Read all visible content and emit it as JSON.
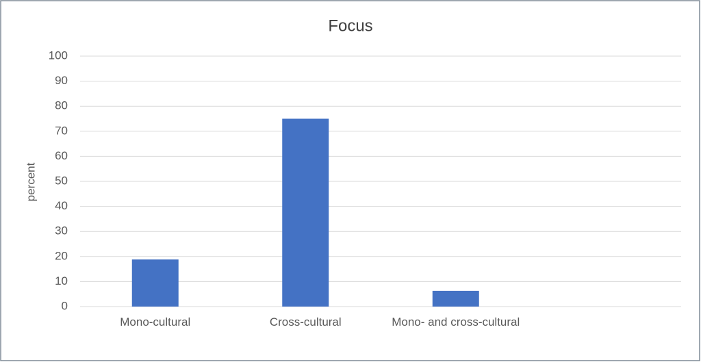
{
  "chart_data": {
    "type": "bar",
    "title": "Focus",
    "y_label": "percent",
    "categories": [
      "Mono-cultural",
      "Cross-cultural",
      "Mono- and cross-cultural",
      null
    ],
    "values": [
      18.8,
      75,
      6.3,
      null
    ],
    "color": "#4472c4",
    "ylim": [
      0,
      100
    ],
    "yticks": [
      0,
      10,
      20,
      30,
      40,
      50,
      60,
      70,
      80,
      90,
      100
    ],
    "grid": true
  }
}
